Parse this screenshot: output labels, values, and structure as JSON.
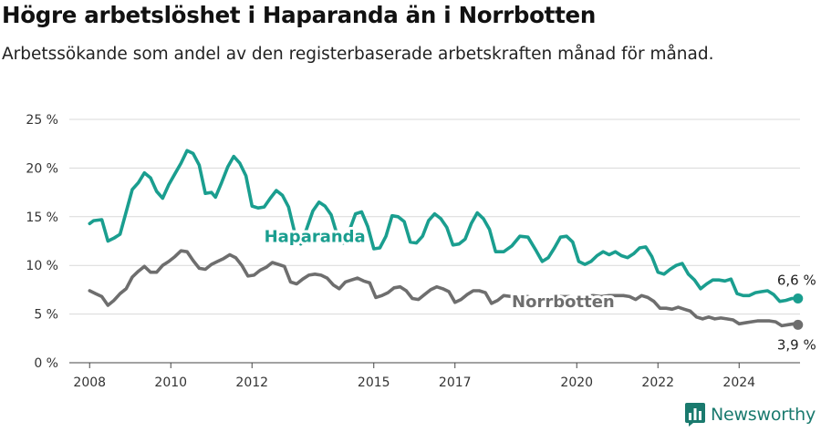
{
  "header": {
    "title": "Högre arbetslöshet i Haparanda än i Norrbotten",
    "subtitle": "Arbetssökande som andel av den registerbaserade arbetskraften månad för månad."
  },
  "brand": {
    "name": "Newsworthy",
    "icon": "bar-chart-logo-icon",
    "color": "#1a7a6e"
  },
  "chart_data": {
    "type": "line",
    "title": "Högre arbetslöshet i Haparanda än i Norrbotten",
    "xlabel": "",
    "ylabel": "",
    "xlim": [
      2007.5,
      2025.5
    ],
    "ylim": [
      0,
      25
    ],
    "y_ticks": [
      0,
      5,
      10,
      15,
      20,
      25
    ],
    "y_tick_labels": [
      "0 %",
      "5 %",
      "10 %",
      "15 %",
      "20 %",
      "25 %"
    ],
    "x_ticks": [
      2008,
      2010,
      2012,
      2015,
      2017,
      2020,
      2022,
      2024
    ],
    "x_tick_labels": [
      "2008",
      "2010",
      "2012",
      "2015",
      "2017",
      "2020",
      "2022",
      "2024"
    ],
    "grid": true,
    "series": [
      {
        "name": "Haparanda",
        "color": "#1a9e8f",
        "end_label": "6,6 %",
        "points": [
          [
            2008.0,
            14.3
          ],
          [
            2008.1,
            14.6
          ],
          [
            2008.3,
            14.7
          ],
          [
            2008.45,
            12.5
          ],
          [
            2008.6,
            12.8
          ],
          [
            2008.75,
            13.2
          ],
          [
            2008.9,
            15.5
          ],
          [
            2009.05,
            17.8
          ],
          [
            2009.2,
            18.5
          ],
          [
            2009.35,
            19.5
          ],
          [
            2009.5,
            19.0
          ],
          [
            2009.65,
            17.6
          ],
          [
            2009.8,
            16.9
          ],
          [
            2009.95,
            18.3
          ],
          [
            2010.1,
            19.4
          ],
          [
            2010.25,
            20.5
          ],
          [
            2010.4,
            21.8
          ],
          [
            2010.55,
            21.5
          ],
          [
            2010.7,
            20.3
          ],
          [
            2010.85,
            17.4
          ],
          [
            2011.0,
            17.5
          ],
          [
            2011.1,
            17.0
          ],
          [
            2011.25,
            18.5
          ],
          [
            2011.4,
            20.1
          ],
          [
            2011.55,
            21.2
          ],
          [
            2011.7,
            20.5
          ],
          [
            2011.85,
            19.2
          ],
          [
            2012.0,
            16.1
          ],
          [
            2012.15,
            15.9
          ],
          [
            2012.3,
            16.0
          ],
          [
            2012.45,
            16.9
          ],
          [
            2012.6,
            17.7
          ],
          [
            2012.75,
            17.2
          ],
          [
            2012.9,
            16.0
          ],
          [
            2013.05,
            13.4
          ],
          [
            2013.2,
            12.2
          ],
          [
            2013.35,
            13.8
          ],
          [
            2013.5,
            15.6
          ],
          [
            2013.65,
            16.5
          ],
          [
            2013.8,
            16.1
          ],
          [
            2013.95,
            15.2
          ],
          [
            2014.1,
            13.1
          ],
          [
            2014.25,
            12.3
          ],
          [
            2014.4,
            13.6
          ],
          [
            2014.55,
            15.3
          ],
          [
            2014.7,
            15.5
          ],
          [
            2014.85,
            14.0
          ],
          [
            2015.0,
            11.7
          ],
          [
            2015.15,
            11.8
          ],
          [
            2015.3,
            13.0
          ],
          [
            2015.45,
            15.1
          ],
          [
            2015.6,
            15.0
          ],
          [
            2015.75,
            14.5
          ],
          [
            2015.9,
            12.4
          ],
          [
            2016.05,
            12.3
          ],
          [
            2016.2,
            13.0
          ],
          [
            2016.35,
            14.6
          ],
          [
            2016.5,
            15.3
          ],
          [
            2016.65,
            14.8
          ],
          [
            2016.8,
            13.9
          ],
          [
            2016.95,
            12.1
          ],
          [
            2017.1,
            12.2
          ],
          [
            2017.25,
            12.7
          ],
          [
            2017.4,
            14.3
          ],
          [
            2017.55,
            15.4
          ],
          [
            2017.7,
            14.8
          ],
          [
            2017.85,
            13.7
          ],
          [
            2018.0,
            11.4
          ],
          [
            2018.2,
            11.4
          ],
          [
            2018.4,
            12.0
          ],
          [
            2018.6,
            13.0
          ],
          [
            2018.8,
            12.9
          ],
          [
            2019.0,
            11.5
          ],
          [
            2019.15,
            10.4
          ],
          [
            2019.3,
            10.8
          ],
          [
            2019.45,
            11.8
          ],
          [
            2019.6,
            12.9
          ],
          [
            2019.75,
            13.0
          ],
          [
            2019.9,
            12.4
          ],
          [
            2020.05,
            10.4
          ],
          [
            2020.2,
            10.1
          ],
          [
            2020.35,
            10.4
          ],
          [
            2020.5,
            11.0
          ],
          [
            2020.65,
            11.4
          ],
          [
            2020.8,
            11.1
          ],
          [
            2020.95,
            11.4
          ],
          [
            2021.1,
            11.0
          ],
          [
            2021.25,
            10.8
          ],
          [
            2021.4,
            11.2
          ],
          [
            2021.55,
            11.8
          ],
          [
            2021.7,
            11.9
          ],
          [
            2021.85,
            10.9
          ],
          [
            2022.0,
            9.3
          ],
          [
            2022.15,
            9.1
          ],
          [
            2022.3,
            9.6
          ],
          [
            2022.45,
            10.0
          ],
          [
            2022.6,
            10.2
          ],
          [
            2022.75,
            9.1
          ],
          [
            2022.9,
            8.5
          ],
          [
            2023.05,
            7.6
          ],
          [
            2023.2,
            8.1
          ],
          [
            2023.35,
            8.5
          ],
          [
            2023.5,
            8.5
          ],
          [
            2023.65,
            8.4
          ],
          [
            2023.8,
            8.6
          ],
          [
            2023.95,
            7.1
          ],
          [
            2024.1,
            6.9
          ],
          [
            2024.25,
            6.9
          ],
          [
            2024.4,
            7.2
          ],
          [
            2024.55,
            7.3
          ],
          [
            2024.7,
            7.4
          ],
          [
            2024.85,
            7.0
          ],
          [
            2025.0,
            6.3
          ],
          [
            2025.15,
            6.4
          ],
          [
            2025.3,
            6.6
          ],
          [
            2025.45,
            6.6
          ]
        ]
      },
      {
        "name": "Norrbotten",
        "color": "#6e6e6e",
        "end_label": "3,9 %",
        "points": [
          [
            2008.0,
            7.4
          ],
          [
            2008.15,
            7.1
          ],
          [
            2008.3,
            6.8
          ],
          [
            2008.45,
            5.9
          ],
          [
            2008.6,
            6.4
          ],
          [
            2008.75,
            7.1
          ],
          [
            2008.9,
            7.6
          ],
          [
            2009.05,
            8.8
          ],
          [
            2009.2,
            9.4
          ],
          [
            2009.35,
            9.9
          ],
          [
            2009.5,
            9.3
          ],
          [
            2009.65,
            9.3
          ],
          [
            2009.8,
            10.0
          ],
          [
            2009.95,
            10.4
          ],
          [
            2010.1,
            10.9
          ],
          [
            2010.25,
            11.5
          ],
          [
            2010.4,
            11.4
          ],
          [
            2010.55,
            10.5
          ],
          [
            2010.7,
            9.7
          ],
          [
            2010.85,
            9.6
          ],
          [
            2011.0,
            10.1
          ],
          [
            2011.15,
            10.4
          ],
          [
            2011.3,
            10.7
          ],
          [
            2011.45,
            11.1
          ],
          [
            2011.6,
            10.8
          ],
          [
            2011.75,
            10.0
          ],
          [
            2011.9,
            8.9
          ],
          [
            2012.05,
            9.0
          ],
          [
            2012.2,
            9.5
          ],
          [
            2012.35,
            9.8
          ],
          [
            2012.5,
            10.3
          ],
          [
            2012.65,
            10.1
          ],
          [
            2012.8,
            9.9
          ],
          [
            2012.95,
            8.3
          ],
          [
            2013.1,
            8.1
          ],
          [
            2013.25,
            8.6
          ],
          [
            2013.4,
            9.0
          ],
          [
            2013.55,
            9.1
          ],
          [
            2013.7,
            9.0
          ],
          [
            2013.85,
            8.7
          ],
          [
            2014.0,
            8.0
          ],
          [
            2014.15,
            7.6
          ],
          [
            2014.3,
            8.3
          ],
          [
            2014.45,
            8.5
          ],
          [
            2014.6,
            8.7
          ],
          [
            2014.75,
            8.4
          ],
          [
            2014.9,
            8.2
          ],
          [
            2015.05,
            6.7
          ],
          [
            2015.2,
            6.9
          ],
          [
            2015.35,
            7.2
          ],
          [
            2015.5,
            7.7
          ],
          [
            2015.65,
            7.8
          ],
          [
            2015.8,
            7.4
          ],
          [
            2015.95,
            6.6
          ],
          [
            2016.1,
            6.5
          ],
          [
            2016.25,
            7.0
          ],
          [
            2016.4,
            7.5
          ],
          [
            2016.55,
            7.8
          ],
          [
            2016.7,
            7.6
          ],
          [
            2016.85,
            7.3
          ],
          [
            2017.0,
            6.2
          ],
          [
            2017.15,
            6.5
          ],
          [
            2017.3,
            7.0
          ],
          [
            2017.45,
            7.4
          ],
          [
            2017.6,
            7.4
          ],
          [
            2017.75,
            7.2
          ],
          [
            2017.9,
            6.1
          ],
          [
            2018.05,
            6.4
          ],
          [
            2018.2,
            6.9
          ],
          [
            2018.4,
            6.8
          ],
          [
            2018.6,
            6.9
          ],
          [
            2018.8,
            6.8
          ],
          [
            2019.0,
            6.2
          ],
          [
            2019.2,
            6.1
          ],
          [
            2019.4,
            6.5
          ],
          [
            2019.6,
            6.8
          ],
          [
            2019.8,
            6.8
          ],
          [
            2020.0,
            6.6
          ],
          [
            2020.2,
            6.8
          ],
          [
            2020.4,
            6.9
          ],
          [
            2020.6,
            6.8
          ],
          [
            2020.8,
            6.9
          ],
          [
            2021.0,
            6.9
          ],
          [
            2021.15,
            6.9
          ],
          [
            2021.3,
            6.8
          ],
          [
            2021.45,
            6.5
          ],
          [
            2021.6,
            6.9
          ],
          [
            2021.75,
            6.7
          ],
          [
            2021.9,
            6.3
          ],
          [
            2022.05,
            5.6
          ],
          [
            2022.2,
            5.6
          ],
          [
            2022.35,
            5.5
          ],
          [
            2022.5,
            5.7
          ],
          [
            2022.65,
            5.5
          ],
          [
            2022.8,
            5.3
          ],
          [
            2022.95,
            4.7
          ],
          [
            2023.1,
            4.5
          ],
          [
            2023.25,
            4.7
          ],
          [
            2023.4,
            4.5
          ],
          [
            2023.55,
            4.6
          ],
          [
            2023.7,
            4.5
          ],
          [
            2023.85,
            4.4
          ],
          [
            2024.0,
            4.0
          ],
          [
            2024.15,
            4.1
          ],
          [
            2024.3,
            4.2
          ],
          [
            2024.45,
            4.3
          ],
          [
            2024.6,
            4.3
          ],
          [
            2024.75,
            4.3
          ],
          [
            2024.9,
            4.2
          ],
          [
            2025.05,
            3.8
          ],
          [
            2025.2,
            3.9
          ],
          [
            2025.35,
            4.0
          ],
          [
            2025.45,
            3.9
          ]
        ]
      }
    ]
  }
}
